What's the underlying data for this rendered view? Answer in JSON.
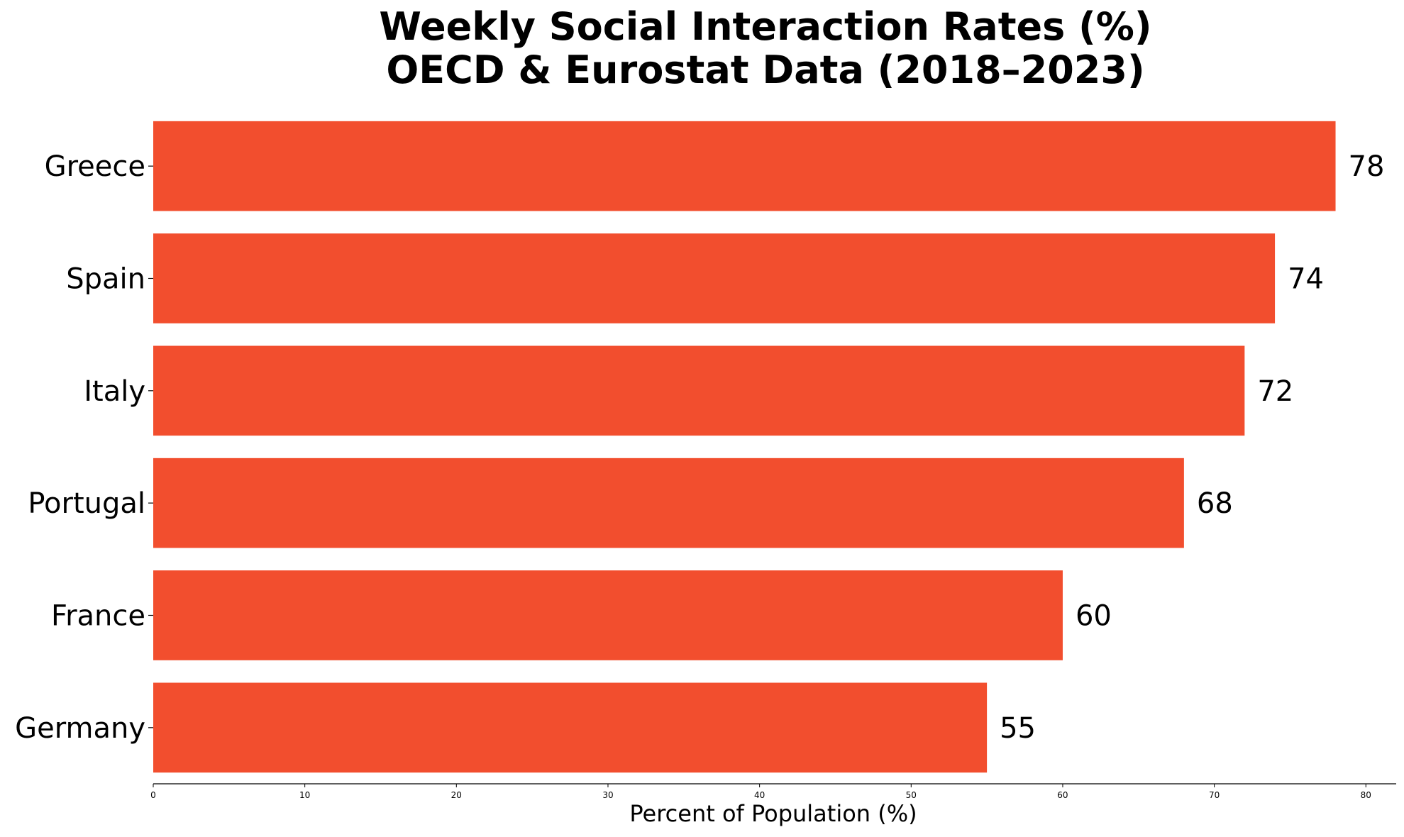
{
  "chart_data": {
    "type": "bar",
    "orientation": "horizontal",
    "title": [
      "Weekly Social Interaction Rates (%)",
      "OECD & Eurostat Data (2018–2023)"
    ],
    "categories": [
      "Greece",
      "Spain",
      "Italy",
      "Portugal",
      "France",
      "Germany"
    ],
    "values": [
      78,
      74,
      72,
      68,
      60,
      55
    ],
    "xlabel": "Percent of Population (%)",
    "ylabel": "",
    "xlim": [
      0,
      82
    ],
    "xticks": [
      0,
      10,
      20,
      30,
      40,
      50,
      60,
      70,
      80
    ],
    "grid": false,
    "bar_color": "#f24e2e"
  }
}
